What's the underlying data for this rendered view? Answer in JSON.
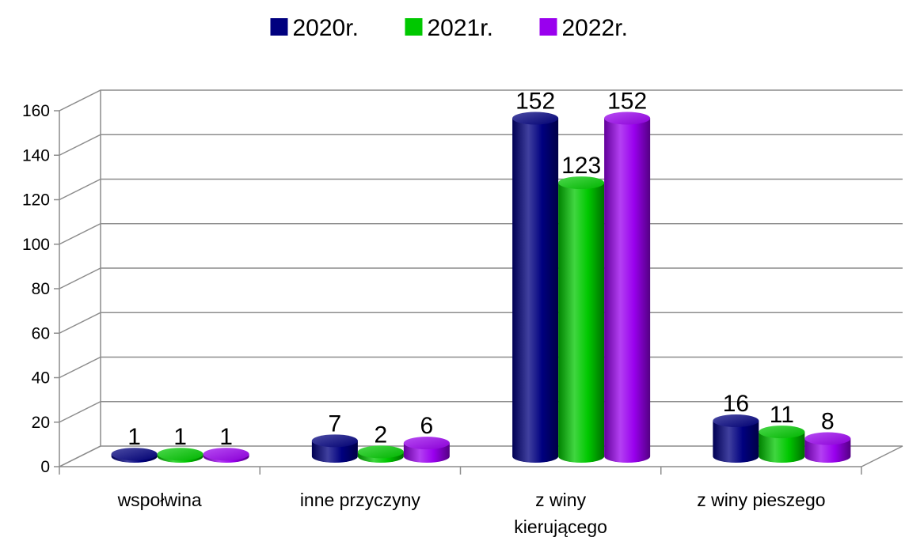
{
  "chart_data": {
    "type": "bar",
    "categories": [
      [
        "wspołwina"
      ],
      [
        "inne przyczyny"
      ],
      [
        "z winy",
        "kierującego"
      ],
      [
        "z winy pieszego"
      ]
    ],
    "series": [
      {
        "name": "2020r.",
        "values": [
          1,
          7,
          152,
          16
        ],
        "color": "#00007f"
      },
      {
        "name": "2021r.",
        "values": [
          1,
          2,
          123,
          11
        ],
        "color": "#00c800"
      },
      {
        "name": "2022r.",
        "values": [
          1,
          6,
          152,
          8
        ],
        "color": "#9900ee"
      }
    ],
    "yticks": [
      0,
      20,
      40,
      60,
      80,
      100,
      120,
      140,
      160
    ],
    "ylim": [
      0,
      160
    ],
    "grid": true,
    "legend_position": "top",
    "title": "",
    "xlabel": "",
    "ylabel": ""
  }
}
